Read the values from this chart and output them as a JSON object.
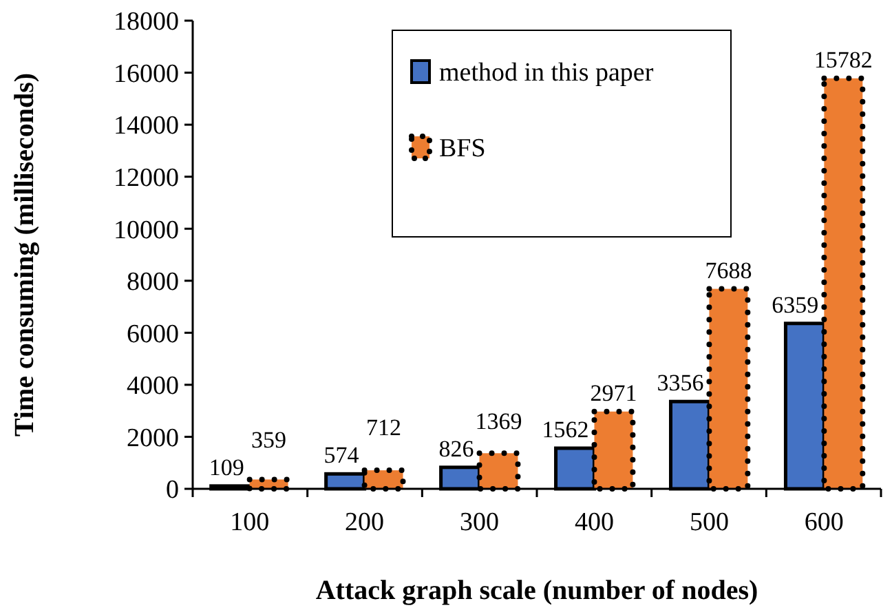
{
  "chart_data": {
    "type": "bar",
    "xlabel": "Attack graph scale (number of nodes)",
    "ylabel": "Time consuming (milliseconds)",
    "categories": [
      "100",
      "200",
      "300",
      "400",
      "500",
      "600"
    ],
    "series": [
      {
        "name": "method in this paper",
        "color": "#4472c4",
        "values": [
          109,
          574,
          826,
          1562,
          3356,
          6359
        ]
      },
      {
        "name": "BFS",
        "color": "#ed7d31",
        "values": [
          359,
          712,
          1369,
          2971,
          7688,
          15782
        ]
      }
    ],
    "ylim": [
      0,
      18000
    ],
    "yticks": [
      0,
      2000,
      4000,
      6000,
      8000,
      10000,
      12000,
      14000,
      16000,
      18000
    ],
    "data_labels": true,
    "legend": "top right",
    "grid": false
  }
}
